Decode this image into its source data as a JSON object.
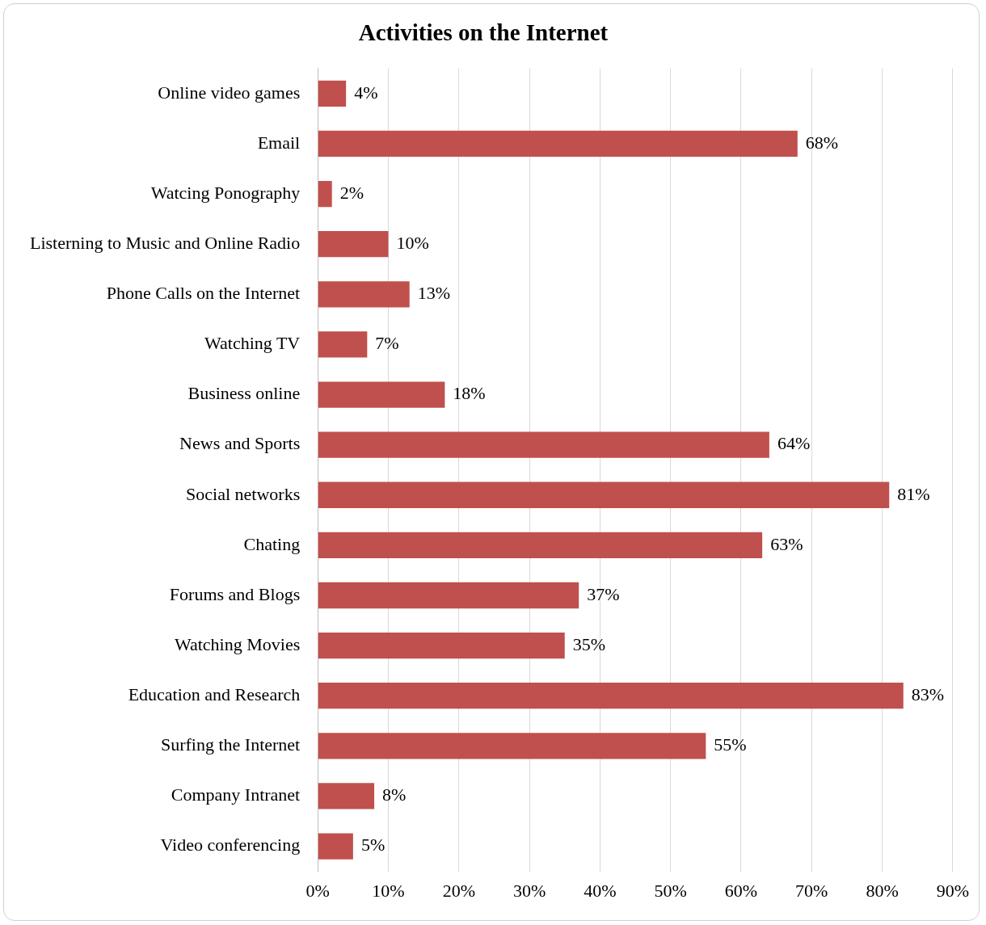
{
  "chart_data": {
    "type": "bar",
    "orientation": "horizontal",
    "title": "Activities on the Internet",
    "categories": [
      "Online video games",
      "Email",
      "Watcing Ponography",
      "Listerning to Music and Online Radio",
      "Phone Calls on the Internet",
      "Watching TV",
      "Business online",
      "News and Sports",
      "Social networks",
      "Chating",
      "Forums and Blogs",
      "Watching Movies",
      "Education and Research",
      "Surfing the Internet",
      "Company Intranet",
      "Video conferencing"
    ],
    "values": [
      4,
      68,
      2,
      10,
      13,
      7,
      18,
      64,
      81,
      63,
      37,
      35,
      83,
      55,
      8,
      5
    ],
    "value_labels": [
      "4%",
      "68%",
      "2%",
      "10%",
      "13%",
      "7%",
      "18%",
      "64%",
      "81%",
      "63%",
      "37%",
      "35%",
      "83%",
      "55%",
      "8%",
      "5%"
    ],
    "color": "#c0504d",
    "xlim": [
      0,
      90
    ],
    "xticks": [
      {
        "value": 0,
        "label": "0%"
      },
      {
        "value": 10,
        "label": "10%"
      },
      {
        "value": 20,
        "label": "20%"
      },
      {
        "value": 30,
        "label": "30%"
      },
      {
        "value": 40,
        "label": "40%"
      },
      {
        "value": 50,
        "label": "50%"
      },
      {
        "value": 60,
        "label": "60%"
      },
      {
        "value": 70,
        "label": "70%"
      },
      {
        "value": 80,
        "label": "80%"
      },
      {
        "value": 90,
        "label": "90%"
      }
    ],
    "grid": "x",
    "legend": false
  }
}
